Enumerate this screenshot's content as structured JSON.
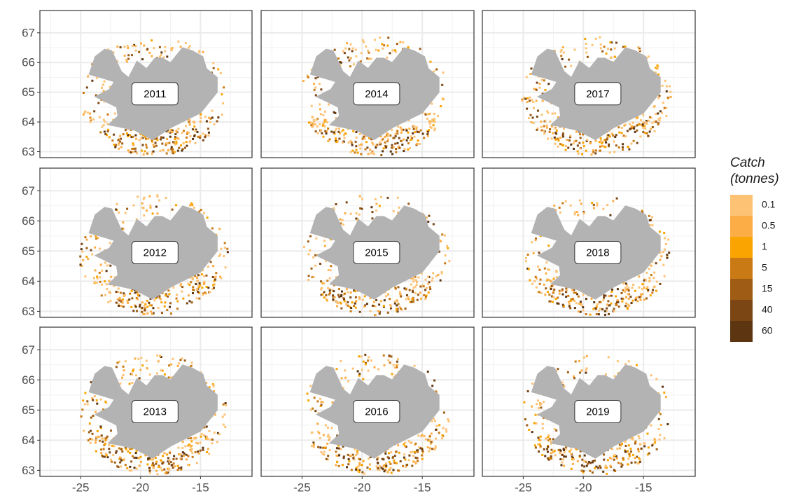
{
  "chart_data": {
    "type": "facet_map",
    "panels": [
      "2011",
      "2014",
      "2017",
      "2012",
      "2015",
      "2018",
      "2013",
      "2016",
      "2019"
    ],
    "xlim": [
      -28.4,
      -10.7
    ],
    "ylim": [
      62.8,
      67.75
    ],
    "xticks": [
      -25,
      -20,
      -15
    ],
    "yticks": [
      63,
      64,
      65,
      66,
      67
    ],
    "grid": true,
    "land_color": "#b3b3b3",
    "legend": {
      "title_lines": [
        "Catch",
        "(tonnes)"
      ],
      "labels": [
        "0.1",
        "0.5",
        "1",
        "5",
        "15",
        "40",
        "60"
      ],
      "colors": [
        "#fdc274",
        "#fcad45",
        "#f9a400",
        "#c97a14",
        "#9e5c15",
        "#7b4613",
        "#5d3510"
      ]
    }
  }
}
